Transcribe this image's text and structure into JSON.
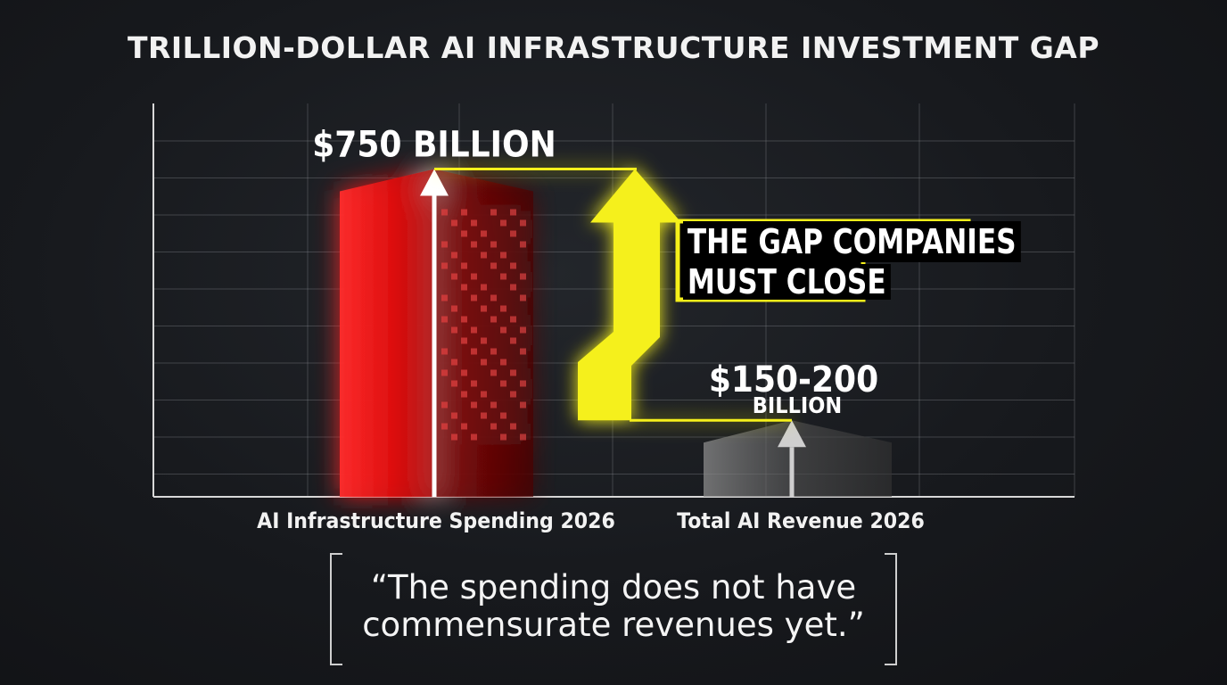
{
  "chart_data": {
    "type": "bar",
    "title": "TRILLION-DOLLAR AI INFRASTRUCTURE INVESTMENT GAP",
    "categories": [
      "AI Infrastructure Spending 2026",
      "Total AI Revenue 2026"
    ],
    "values": [
      750,
      175
    ],
    "value_labels": [
      {
        "main": "$750 BILLION"
      },
      {
        "main": "$150-200",
        "sub": "BILLION"
      }
    ],
    "value_units": "billion USD",
    "ylim": [
      0,
      900
    ],
    "grid": true,
    "annotation": {
      "line1": "THE GAP COMPANIES",
      "line2": "MUST CLOSE"
    },
    "bar_colors": [
      "#ff2020",
      "#9a9a9a"
    ],
    "accent": "#f5f01a"
  },
  "quote": {
    "text": "“The spending does not have commensurate revenues yet.”"
  },
  "background": "#16181c"
}
